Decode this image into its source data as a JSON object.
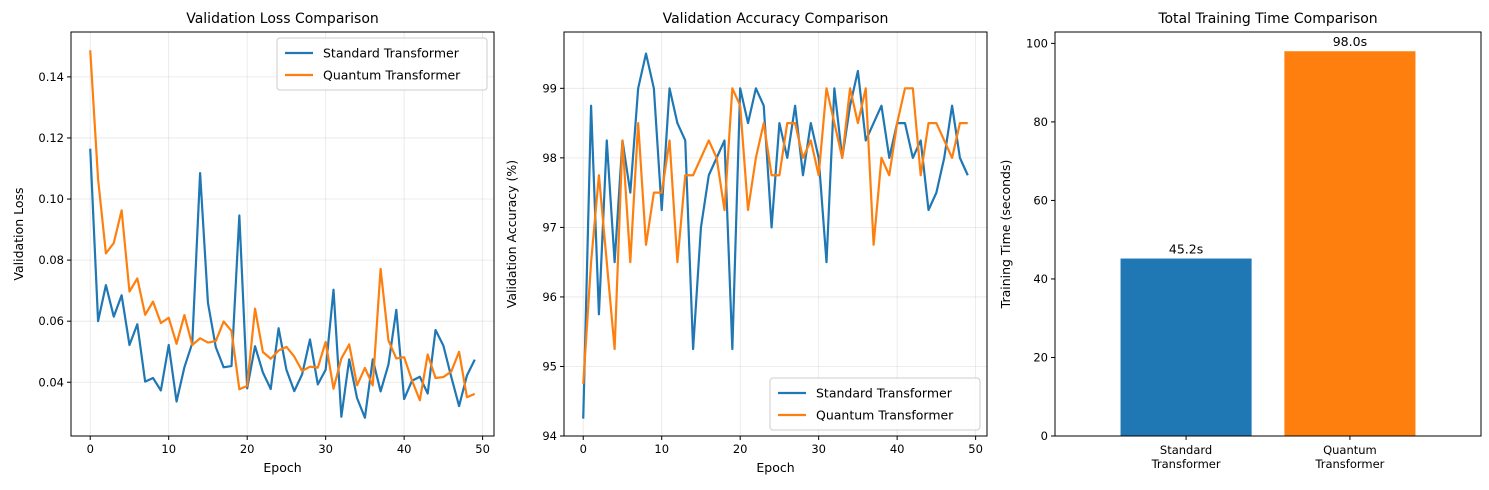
{
  "colors": {
    "standard": "#1f77b4",
    "quantum": "#ff7f0e"
  },
  "chart_data": [
    {
      "type": "line",
      "title": "Validation Loss Comparison",
      "xlabel": "Epoch",
      "ylabel": "Validation Loss",
      "xlim": [
        -2.45,
        51.45
      ],
      "ylim": [
        0.0224,
        0.1547
      ],
      "xticks": [
        0,
        10,
        20,
        30,
        40,
        50
      ],
      "yticks": [
        0.04,
        0.06,
        0.08,
        0.1,
        0.12,
        0.14
      ],
      "ytick_labels": [
        "0.04",
        "0.06",
        "0.08",
        "0.10",
        "0.12",
        "0.14"
      ],
      "grid": true,
      "legend": "top-right",
      "series": [
        {
          "name": "Standard Transformer",
          "color_key": "standard",
          "values": [
            0.1165,
            0.06,
            0.0718,
            0.0615,
            0.0685,
            0.0522,
            0.059,
            0.0402,
            0.0414,
            0.0373,
            0.0522,
            0.0337,
            0.0449,
            0.0528,
            0.1085,
            0.066,
            0.0515,
            0.0449,
            0.0453,
            0.0946,
            0.038,
            0.0518,
            0.0432,
            0.0378,
            0.0577,
            0.0441,
            0.0371,
            0.0426,
            0.054,
            0.0393,
            0.0441,
            0.0703,
            0.0287,
            0.0475,
            0.0348,
            0.0284,
            0.0475,
            0.037,
            0.0458,
            0.0637,
            0.0345,
            0.0405,
            0.0418,
            0.0363,
            0.0571,
            0.052,
            0.0418,
            0.0322,
            0.0422,
            0.0474
          ]
        },
        {
          "name": "Quantum Transformer",
          "color_key": "quantum",
          "values": [
            0.1487,
            0.1065,
            0.0822,
            0.0856,
            0.0963,
            0.0697,
            0.074,
            0.0621,
            0.0664,
            0.0594,
            0.0611,
            0.0526,
            0.062,
            0.0522,
            0.0544,
            0.053,
            0.0535,
            0.0599,
            0.0568,
            0.0377,
            0.0388,
            0.0641,
            0.0499,
            0.0477,
            0.0504,
            0.0516,
            0.0484,
            0.0437,
            0.0451,
            0.0448,
            0.0532,
            0.0379,
            0.0478,
            0.0524,
            0.039,
            0.0447,
            0.039,
            0.0771,
            0.0537,
            0.0478,
            0.0482,
            0.0406,
            0.0341,
            0.0491,
            0.0414,
            0.0417,
            0.0435,
            0.05,
            0.0351,
            0.0362
          ]
        }
      ]
    },
    {
      "type": "line",
      "title": "Validation Accuracy Comparison",
      "xlabel": "Epoch",
      "ylabel": "Validation Accuracy (%)",
      "xlim": [
        -2.45,
        51.45
      ],
      "ylim": [
        94.0,
        99.81
      ],
      "xticks": [
        0,
        10,
        20,
        30,
        40,
        50
      ],
      "yticks": [
        94,
        95,
        96,
        97,
        98,
        99
      ],
      "ytick_labels": [
        "94",
        "95",
        "96",
        "97",
        "98",
        "99"
      ],
      "grid": true,
      "legend": "bottom-right",
      "series": [
        {
          "name": "Standard Transformer",
          "color_key": "standard",
          "values": [
            94.25,
            98.75,
            95.75,
            98.25,
            96.5,
            98.25,
            97.5,
            99.0,
            99.5,
            99.0,
            97.25,
            99.0,
            98.5,
            98.25,
            95.25,
            97.0,
            97.75,
            98.0,
            98.25,
            95.25,
            99.0,
            98.5,
            99.0,
            98.75,
            97.0,
            98.5,
            98.0,
            98.75,
            97.75,
            98.5,
            98.0,
            96.5,
            99.0,
            98.0,
            98.75,
            99.25,
            98.25,
            98.5,
            98.75,
            98.0,
            98.5,
            98.5,
            98.0,
            98.25,
            97.25,
            97.5,
            98.0,
            98.75,
            98.0,
            97.75
          ]
        },
        {
          "name": "Quantum Transformer",
          "color_key": "quantum",
          "values": [
            94.75,
            96.5,
            97.75,
            96.5,
            95.25,
            98.25,
            96.5,
            98.5,
            96.75,
            97.5,
            97.5,
            98.25,
            96.5,
            97.75,
            97.75,
            98.0,
            98.25,
            98.0,
            97.25,
            99.0,
            98.75,
            97.25,
            98.0,
            98.5,
            97.75,
            97.75,
            98.5,
            98.5,
            98.0,
            98.25,
            97.75,
            99.0,
            98.5,
            98.0,
            99.0,
            98.5,
            99.0,
            96.75,
            98.0,
            97.75,
            98.5,
            99.0,
            99.0,
            97.75,
            98.5,
            98.5,
            98.25,
            98.0,
            98.5,
            98.5
          ]
        }
      ]
    },
    {
      "type": "bar",
      "title": "Total Training Time Comparison",
      "xlabel": "",
      "ylabel": "Training Time (seconds)",
      "ylim": [
        0,
        102.9
      ],
      "yticks": [
        0,
        20,
        40,
        60,
        80,
        100
      ],
      "ytick_labels": [
        "0",
        "20",
        "40",
        "60",
        "80",
        "100"
      ],
      "grid": false,
      "categories": [
        [
          "Standard",
          "Transformer"
        ],
        [
          "Quantum",
          "Transformer"
        ]
      ],
      "values": [
        45.2,
        98.0
      ],
      "value_labels": [
        "45.2s",
        "98.0s"
      ],
      "bar_colors": [
        "standard",
        "quantum"
      ]
    }
  ]
}
